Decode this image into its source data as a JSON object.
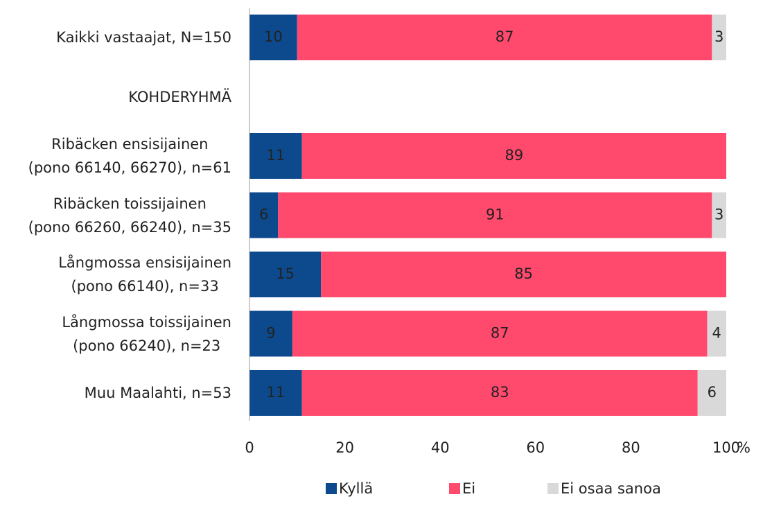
{
  "chart_data": {
    "type": "stacked_barh",
    "categories": [
      "Kaikki vastaajat, N=150",
      "KOHDERYHMÄ",
      "Ribäcken ensisijainen\n(pono 66140, 66270), n=61",
      "Ribäcken toissijainen\n(pono 66260, 66240), n=35",
      "Långmossa ensisijainen\n(pono 66140), n=33",
      "Långmossa toissijainen\n(pono 66240), n=23",
      "Muu Maalahti, n=53"
    ],
    "series": [
      {
        "name": "Kyllä",
        "color": "#0d4a8d",
        "values": [
          10,
          null,
          11,
          6,
          15,
          9,
          11
        ]
      },
      {
        "name": "Ei",
        "color": "#ff4a6e",
        "values": [
          87,
          null,
          89,
          91,
          85,
          87,
          83
        ]
      },
      {
        "name": "Ei osaa sanoa",
        "color": "#d9d9d9",
        "values": [
          3,
          null,
          null,
          3,
          null,
          4,
          6
        ]
      }
    ],
    "xlim": [
      0,
      100
    ],
    "xticks": [
      0,
      20,
      40,
      60,
      80,
      100
    ],
    "xlabel": "%",
    "grid": false
  }
}
